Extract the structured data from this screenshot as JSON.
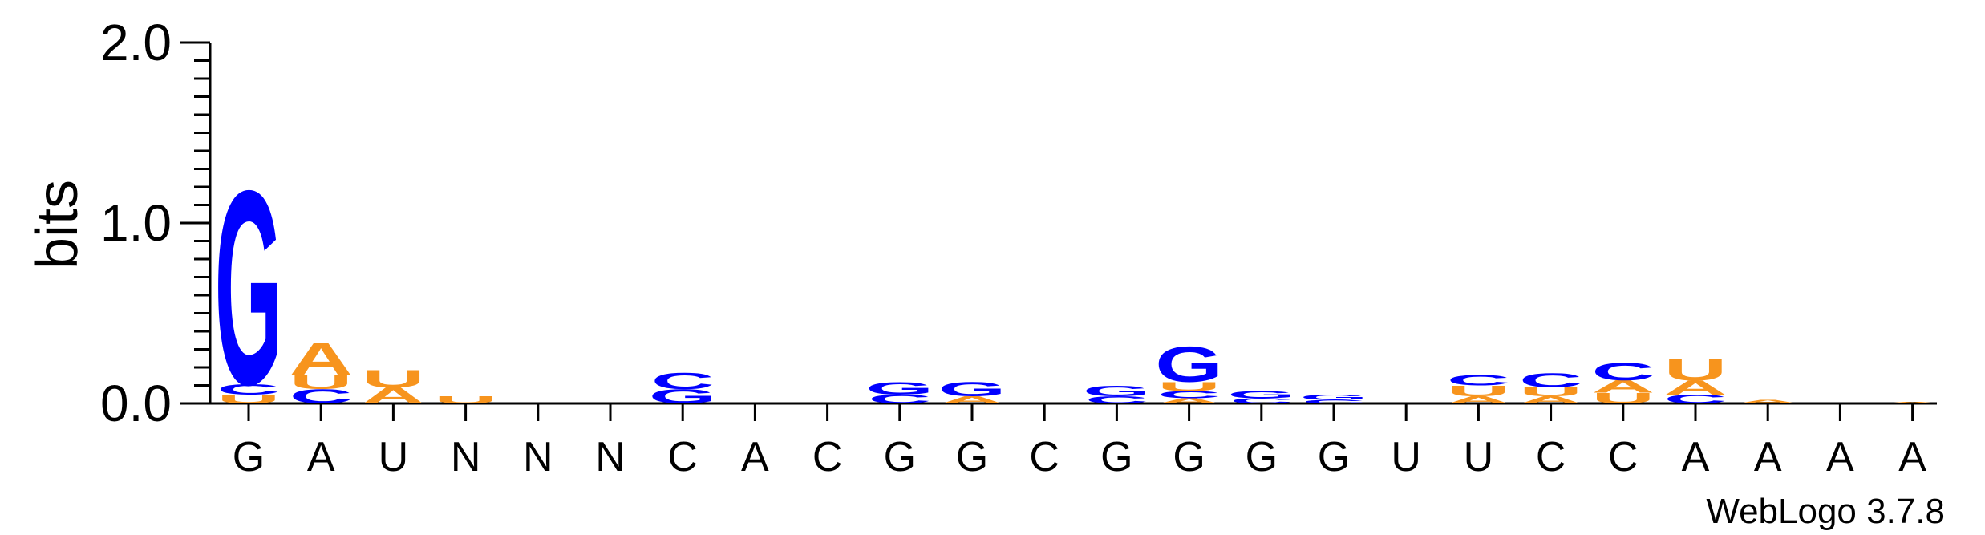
{
  "chart_data": {
    "type": "sequence-logo",
    "ylabel": "bits",
    "ylim": [
      0,
      2.0
    ],
    "yticks": [
      "0.0",
      "1.0",
      "2.0"
    ],
    "footer": "WebLogo 3.7.8",
    "colors": {
      "A": "#f7941d",
      "U": "#f7941d",
      "G": "#0000ff",
      "C": "#0000ff"
    },
    "positions": [
      {
        "label": "G",
        "stacks": [
          [
            "U",
            0.05
          ],
          [
            "C",
            0.06
          ],
          [
            "G",
            1.1
          ]
        ]
      },
      {
        "label": "A",
        "stacks": [
          [
            "C",
            0.08
          ],
          [
            "U",
            0.08
          ],
          [
            "A",
            0.18
          ]
        ]
      },
      {
        "label": "U",
        "stacks": [
          [
            "A",
            0.09
          ],
          [
            "U",
            0.1
          ]
        ]
      },
      {
        "label": "N",
        "stacks": [
          [
            "U",
            0.04
          ]
        ]
      },
      {
        "label": "N",
        "stacks": []
      },
      {
        "label": "N",
        "stacks": []
      },
      {
        "label": "C",
        "stacks": [
          [
            "G",
            0.08
          ],
          [
            "C",
            0.09
          ]
        ]
      },
      {
        "label": "A",
        "stacks": []
      },
      {
        "label": "C",
        "stacks": []
      },
      {
        "label": "G",
        "stacks": [
          [
            "C",
            0.05
          ],
          [
            "G",
            0.07
          ]
        ]
      },
      {
        "label": "G",
        "stacks": [
          [
            "A",
            0.04
          ],
          [
            "G",
            0.08
          ]
        ]
      },
      {
        "label": "C",
        "stacks": []
      },
      {
        "label": "G",
        "stacks": [
          [
            "C",
            0.04
          ],
          [
            "G",
            0.06
          ]
        ]
      },
      {
        "label": "G",
        "stacks": [
          [
            "A",
            0.03
          ],
          [
            "C",
            0.04
          ],
          [
            "U",
            0.05
          ],
          [
            "G",
            0.2
          ]
        ]
      },
      {
        "label": "G",
        "stacks": [
          [
            "C",
            0.03
          ],
          [
            "G",
            0.04
          ]
        ]
      },
      {
        "label": "G",
        "stacks": [
          [
            "C",
            0.02
          ],
          [
            "G",
            0.03
          ]
        ]
      },
      {
        "label": "U",
        "stacks": []
      },
      {
        "label": "U",
        "stacks": [
          [
            "A",
            0.04
          ],
          [
            "U",
            0.06
          ],
          [
            "C",
            0.06
          ]
        ]
      },
      {
        "label": "C",
        "stacks": [
          [
            "A",
            0.04
          ],
          [
            "U",
            0.05
          ],
          [
            "C",
            0.08
          ]
        ]
      },
      {
        "label": "C",
        "stacks": [
          [
            "U",
            0.06
          ],
          [
            "A",
            0.07
          ],
          [
            "C",
            0.1
          ]
        ]
      },
      {
        "label": "A",
        "stacks": [
          [
            "C",
            0.05
          ],
          [
            "A",
            0.08
          ],
          [
            "U",
            0.12
          ]
        ]
      },
      {
        "label": "A",
        "stacks": [
          [
            "A",
            0.02
          ]
        ]
      },
      {
        "label": "A",
        "stacks": []
      },
      {
        "label": "A",
        "stacks": [
          [
            "A",
            0.01
          ]
        ]
      }
    ]
  }
}
